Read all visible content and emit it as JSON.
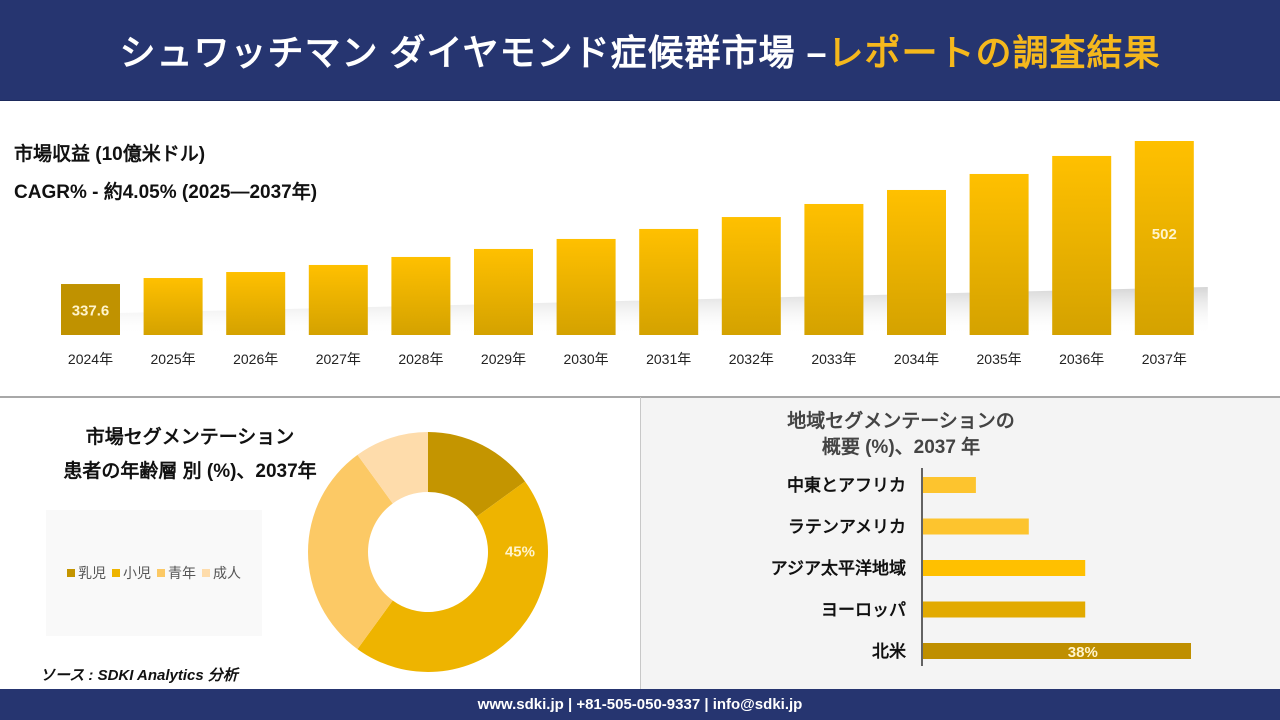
{
  "header": {
    "title_main": "シュワッチマン ダイヤモンド症候群市場 –",
    "title_accent": "レポートの調査結果"
  },
  "revenue": {
    "label": "市場収益 (10億米ドル)",
    "cagr": "CAGR% - 約4.05% (2025—2037年)"
  },
  "segmentation": {
    "title_line1": "市場セグメンテーション",
    "title_line2": "患者の年齢層 別 (%)、2037年"
  },
  "region": {
    "title_line1": "地域セグメンテーションの",
    "title_line2": "概要 (%)、2037 年"
  },
  "source": "ソース : SDKI Analytics 分析",
  "footer": {
    "contact": "www.sdki.jp | +81-505-050-9337 | info@sdki.jp"
  },
  "colors": {
    "header_bg": "#263570",
    "accent": "#f5b81c",
    "bar_top": "#ffc000",
    "bar_bottom": "#d4a200",
    "bar_first": "#c09200"
  },
  "chart_data": [
    {
      "type": "bar",
      "title": "市場収益 (10億米ドル)",
      "subtitle": "CAGR% - 約4.05% (2025—2037年)",
      "categories": [
        "2024年",
        "2025年",
        "2026年",
        "2027年",
        "2028年",
        "2029年",
        "2030年",
        "2031年",
        "2032年",
        "2033年",
        "2034年",
        "2035年",
        "2036年",
        "2037年"
      ],
      "values": [
        337.6,
        344.5,
        351.4,
        359.5,
        368.7,
        377.9,
        389.4,
        400.9,
        414.6,
        429.6,
        445.7,
        464.1,
        484.8,
        502
      ],
      "data_labels": {
        "0": "337.6",
        "13": "502"
      },
      "xlabel": "",
      "ylabel": "",
      "ylim": [
        279,
        502
      ],
      "grid": false,
      "legend": "none"
    },
    {
      "type": "pie",
      "variant": "donut",
      "title": "市場セグメンテーション 患者の年齢層 別 (%)、2037年",
      "categories": [
        "乳児",
        "小児",
        "青年",
        "成人"
      ],
      "values": [
        15,
        45,
        30,
        10
      ],
      "colors": [
        "#c49500",
        "#eeb400",
        "#fcc965",
        "#fedcab"
      ],
      "data_labels": {
        "1": "45%"
      },
      "legend": "left"
    },
    {
      "type": "bar",
      "orientation": "horizontal",
      "title": "地域セグメンテーションの 概要 (%)、2037 年",
      "categories": [
        "中東とアフリカ",
        "ラテンアメリカ",
        "アジア太平洋地域",
        "ヨーロッパ",
        "北米"
      ],
      "values": [
        7.5,
        15,
        23,
        23,
        38
      ],
      "colors": [
        "#fdc42e",
        "#fdc42e",
        "#ffc000",
        "#e2aa00",
        "#bf8f00"
      ],
      "data_labels": {
        "4": "38%"
      },
      "xlim": [
        0,
        40
      ],
      "grid": false,
      "legend": "none"
    }
  ]
}
